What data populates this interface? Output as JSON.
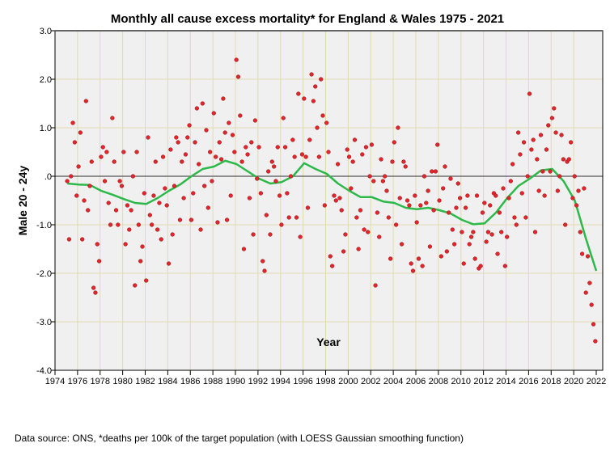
{
  "chart_data": {
    "type": "scatter",
    "title": "Monthly all cause excess mortality* for England & Wales 1975 - 2021",
    "xlabel": "Year",
    "ylabel": "Male 20 - 24y",
    "footnote": "Data source: ONS, *deaths per 100k of the target population (with LOESS Gaussian smoothing function)",
    "xlim": [
      1974,
      2022
    ],
    "ylim": [
      -4,
      3
    ],
    "x_ticks": [
      "1974",
      "1976",
      "1978",
      "1980",
      "1982",
      "1984",
      "1986",
      "1988",
      "1990",
      "1992",
      "1994",
      "1996",
      "1998",
      "2000",
      "2002",
      "2004",
      "2006",
      "2008",
      "2010",
      "2012",
      "2014",
      "2016",
      "2018",
      "2020",
      "2022"
    ],
    "y_ticks": [
      {
        "v": 3,
        "label": "3.0"
      },
      {
        "v": 2,
        "label": "2.0"
      },
      {
        "v": 1,
        "label": "1.0"
      },
      {
        "v": 0,
        "label": ".0"
      },
      {
        "v": -1,
        "label": "-1.0"
      },
      {
        "v": -2,
        "label": "-2.0"
      },
      {
        "v": -3,
        "label": "-3.0"
      },
      {
        "v": -4,
        "label": "-4.0"
      }
    ],
    "grid": true,
    "reference_line_y": 0,
    "colors": {
      "points": "#e0252b",
      "smooth": "#2db84a",
      "plot_bg": "#f0f0f0",
      "grid": "#e2dab0"
    },
    "points_by_year": {
      "1975": [
        -0.1,
        -1.3,
        0.0,
        1.1,
        0.7,
        -0.4
      ],
      "1976": [
        0.2,
        0.9,
        -1.3,
        -0.5,
        1.55,
        -0.7
      ],
      "1977": [
        -0.2,
        0.3,
        -2.3,
        -2.4,
        -1.4,
        -1.75
      ],
      "1978": [
        0.4,
        0.6,
        -0.1,
        0.5,
        -0.55,
        -1.0
      ],
      "1979": [
        1.2,
        0.3,
        -0.7,
        -1.0,
        -0.1,
        -0.2
      ],
      "1980": [
        0.5,
        -1.4,
        -0.6,
        -1.1,
        -0.7,
        0.0
      ],
      "1981": [
        -2.25,
        0.5,
        -1.0,
        -1.75,
        -1.45,
        -0.35
      ],
      "1982": [
        -2.15,
        0.8,
        -0.8,
        -1.0,
        -0.4,
        0.3
      ],
      "1983": [
        -1.1,
        -0.55,
        -1.3,
        0.4,
        -0.25,
        -0.6
      ],
      "1984": [
        -1.8,
        0.55,
        -1.2,
        -0.2,
        0.8,
        0.7
      ],
      "1985": [
        -0.9,
        0.3,
        -0.45,
        0.45,
        0.8,
        1.05
      ],
      "1986": [
        -0.9,
        -0.35,
        0.7,
        1.4,
        0.25,
        -1.1
      ],
      "1987": [
        1.5,
        -0.2,
        0.95,
        -0.65,
        0.5,
        -0.1
      ],
      "1988": [
        1.3,
        0.4,
        -0.95,
        0.7,
        0.35,
        1.6
      ],
      "1989": [
        0.9,
        -0.9,
        1.1,
        -0.4,
        0.85,
        0.5
      ],
      "1990": [
        2.4,
        2.05,
        1.25,
        0.3,
        -1.5,
        0.6
      ],
      "1991": [
        0.45,
        -0.45,
        0.7,
        -1.2,
        1.15,
        -0.05
      ],
      "1992": [
        0.6,
        -0.35,
        -1.75,
        -1.95,
        -0.8,
        0.1
      ],
      "1993": [
        -1.2,
        0.3,
        0.2,
        -0.1,
        0.6,
        -0.4
      ],
      "1994": [
        -1.0,
        1.2,
        0.6,
        -0.35,
        -0.85,
        0.0
      ],
      "1995": [
        0.75,
        0.4,
        -0.85,
        1.7,
        -1.25,
        0.45
      ],
      "1996": [
        1.6,
        0.4,
        -0.65,
        0.75,
        2.1,
        1.55
      ],
      "1997": [
        1.85,
        1.0,
        0.4,
        2.0,
        1.25,
        -0.6
      ],
      "1998": [
        1.1,
        0.5,
        -1.65,
        -1.85,
        -0.4,
        -0.5
      ],
      "1999": [
        0.25,
        -0.45,
        -0.7,
        -1.55,
        -1.2,
        0.55
      ],
      "2000": [
        0.4,
        -0.25,
        0.3,
        0.75,
        -0.85,
        -1.5
      ],
      "2001": [
        -0.7,
        0.45,
        -1.1,
        0.6,
        -1.15,
        0.0
      ],
      "2002": [
        0.65,
        -0.1,
        -2.25,
        -0.75,
        -1.25,
        0.35
      ],
      "2003": [
        -0.1,
        0.0,
        -0.3,
        -0.85,
        -1.7,
        0.3
      ],
      "2004": [
        0.7,
        -1.0,
        1.0,
        -0.45,
        -1.4,
        0.3
      ],
      "2005": [
        0.2,
        -0.5,
        -0.6,
        -1.8,
        -1.95,
        -0.4
      ],
      "2006": [
        -0.95,
        -1.7,
        -0.6,
        -1.85,
        0.0,
        -0.55
      ],
      "2007": [
        -0.3,
        -1.45,
        0.1,
        -0.7,
        0.1,
        0.65
      ],
      "2008": [
        -0.5,
        -1.65,
        -0.25,
        0.2,
        -1.55,
        -0.75
      ],
      "2009": [
        -0.05,
        -1.1,
        -1.4,
        -0.65,
        -0.15,
        -0.45
      ],
      "2010": [
        -1.15,
        -1.8,
        -0.65,
        -0.4,
        -1.4,
        -1.25
      ],
      "2011": [
        -1.15,
        -1.7,
        -0.4,
        -1.9,
        -1.85,
        -0.75
      ],
      "2012": [
        -0.55,
        -1.35,
        -1.15,
        -0.6,
        -1.2,
        -0.35
      ],
      "2013": [
        -0.4,
        -1.6,
        -0.75,
        -1.15,
        -0.25,
        -1.85
      ],
      "2014": [
        -1.25,
        -0.45,
        -0.1,
        0.25,
        -0.85,
        -1.0
      ],
      "2015": [
        0.9,
        0.45,
        -0.35,
        0.7,
        -0.85,
        0.0
      ],
      "2016": [
        1.7,
        0.55,
        0.75,
        -1.15,
        0.35,
        -0.3
      ],
      "2017": [
        0.85,
        0.1,
        -0.4,
        0.55,
        1.05,
        0.1
      ],
      "2018": [
        1.2,
        1.4,
        0.9,
        -0.3,
        0.0,
        0.85
      ],
      "2019": [
        0.35,
        -1.0,
        0.3,
        0.35,
        0.7,
        -0.45
      ],
      "2020": [
        0.0,
        -0.6,
        -0.3,
        -1.15,
        -1.6,
        -0.25
      ],
      "2021": [
        -2.4,
        -1.65,
        -2.2,
        -2.65,
        -3.05,
        -3.4
      ]
    },
    "smooth_series": {
      "name": "LOESS Gaussian smoothing",
      "x": [
        1975,
        1976,
        1977,
        1978,
        1979,
        1980,
        1981,
        1982,
        1983,
        1984,
        1985,
        1986,
        1987,
        1988,
        1989,
        1990,
        1991,
        1992,
        1993,
        1994,
        1995,
        1996,
        1997,
        1998,
        1999,
        2000,
        2001,
        2002,
        2003,
        2004,
        2005,
        2006,
        2007,
        2008,
        2009,
        2010,
        2011,
        2012,
        2013,
        2014,
        2015,
        2016,
        2017,
        2018,
        2019,
        2020,
        2021,
        2021.9
      ],
      "y": [
        -0.15,
        -0.17,
        -0.18,
        -0.3,
        -0.38,
        -0.47,
        -0.55,
        -0.57,
        -0.45,
        -0.3,
        -0.17,
        0.0,
        0.15,
        0.2,
        0.32,
        0.25,
        0.1,
        -0.05,
        -0.15,
        -0.12,
        0.0,
        0.27,
        0.15,
        0.05,
        -0.15,
        -0.3,
        -0.43,
        -0.43,
        -0.52,
        -0.55,
        -0.65,
        -0.68,
        -0.65,
        -0.7,
        -0.77,
        -0.9,
        -0.99,
        -0.97,
        -0.75,
        -0.45,
        -0.2,
        -0.05,
        0.12,
        0.15,
        -0.1,
        -0.5,
        -1.3,
        -1.95
      ]
    }
  }
}
